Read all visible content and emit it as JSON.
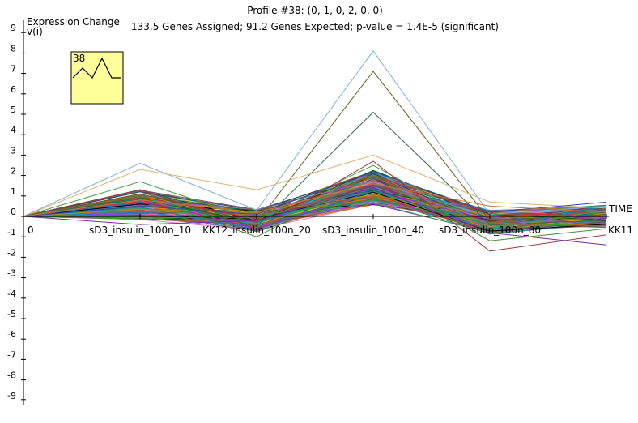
{
  "chart_data": {
    "type": "line",
    "title": "Profile #38: (0, 1, 0, 2, 0, 0)",
    "subtitle": "133.5 Genes Assigned; 91.2 Genes Expected; p-value = 1.4E-5 (significant)",
    "ylabel_line1": "Expression Change",
    "ylabel_line2": "v(i)",
    "xlabel": "TIME",
    "ylim": [
      -9,
      9
    ],
    "yticks": [
      9,
      8,
      7,
      6,
      5,
      4,
      3,
      2,
      1,
      0,
      -1,
      -2,
      -3,
      -4,
      -5,
      -6,
      -7,
      -8,
      -9
    ],
    "categories": [
      "0",
      "sD3_insulin_100n_10",
      "KK12_insulin_100n_20",
      "sD3_insulin_100n_40",
      "sD3_insulin_100n_80",
      "KK11"
    ],
    "profile": {
      "id": "38",
      "values": [
        0,
        1,
        0,
        2,
        0,
        0
      ]
    },
    "legend_placement": "top-left inset",
    "highlight_series": [
      {
        "values": [
          0,
          2.6,
          0.3,
          8.1,
          0.1,
          0.5
        ],
        "color": "#7fb2d6"
      },
      {
        "values": [
          0,
          1.1,
          -0.3,
          7.1,
          -0.2,
          0.1
        ],
        "color": "#6b5a1e"
      },
      {
        "values": [
          0,
          0.9,
          -0.5,
          5.1,
          -0.4,
          -0.2
        ],
        "color": "#2e6a4a"
      },
      {
        "values": [
          0,
          2.3,
          1.3,
          3.0,
          0.7,
          0.4
        ],
        "color": "#e0b070"
      },
      {
        "values": [
          0,
          1.7,
          -0.2,
          2.5,
          -0.6,
          0.3
        ],
        "color": "#3fa048"
      },
      {
        "values": [
          0,
          1.3,
          -0.6,
          2.7,
          -1.7,
          -0.9
        ],
        "color": "#9b3b3b"
      },
      {
        "values": [
          0,
          -0.4,
          -0.2,
          1.4,
          -0.8,
          -1.4
        ],
        "color": "#7a2aa0"
      },
      {
        "values": [
          0,
          0.5,
          0.1,
          2.2,
          0.2,
          0.7
        ],
        "color": "#2a4fa0"
      },
      {
        "values": [
          0,
          1.0,
          -1.0,
          2.0,
          -1.2,
          -0.6
        ],
        "color": "#4a8a3a"
      },
      {
        "values": [
          0,
          0.8,
          0.2,
          1.6,
          0.5,
          0.2
        ],
        "color": "#d07030"
      }
    ],
    "band": {
      "mean": [
        0,
        0.55,
        -0.2,
        1.4,
        -0.3,
        0.0
      ],
      "spread": [
        0,
        0.75,
        0.55,
        0.85,
        0.6,
        0.55
      ]
    },
    "palette": [
      "#d62728",
      "#1f77b4",
      "#2ca02c",
      "#9467bd",
      "#8c564b",
      "#e377c2",
      "#17becf",
      "#bcbd22",
      "#ff7f0e",
      "#7f7f7f",
      "#393b79",
      "#637939",
      "#8c6d31",
      "#843c39",
      "#7b4173",
      "#3182bd",
      "#31a354",
      "#756bb1",
      "#e6550d",
      "#636363",
      "#000000",
      "#a020f0",
      "#008b8b",
      "#b8860b",
      "#006400"
    ],
    "inset_fill": "#ffff99",
    "axis_color": "#000000"
  }
}
